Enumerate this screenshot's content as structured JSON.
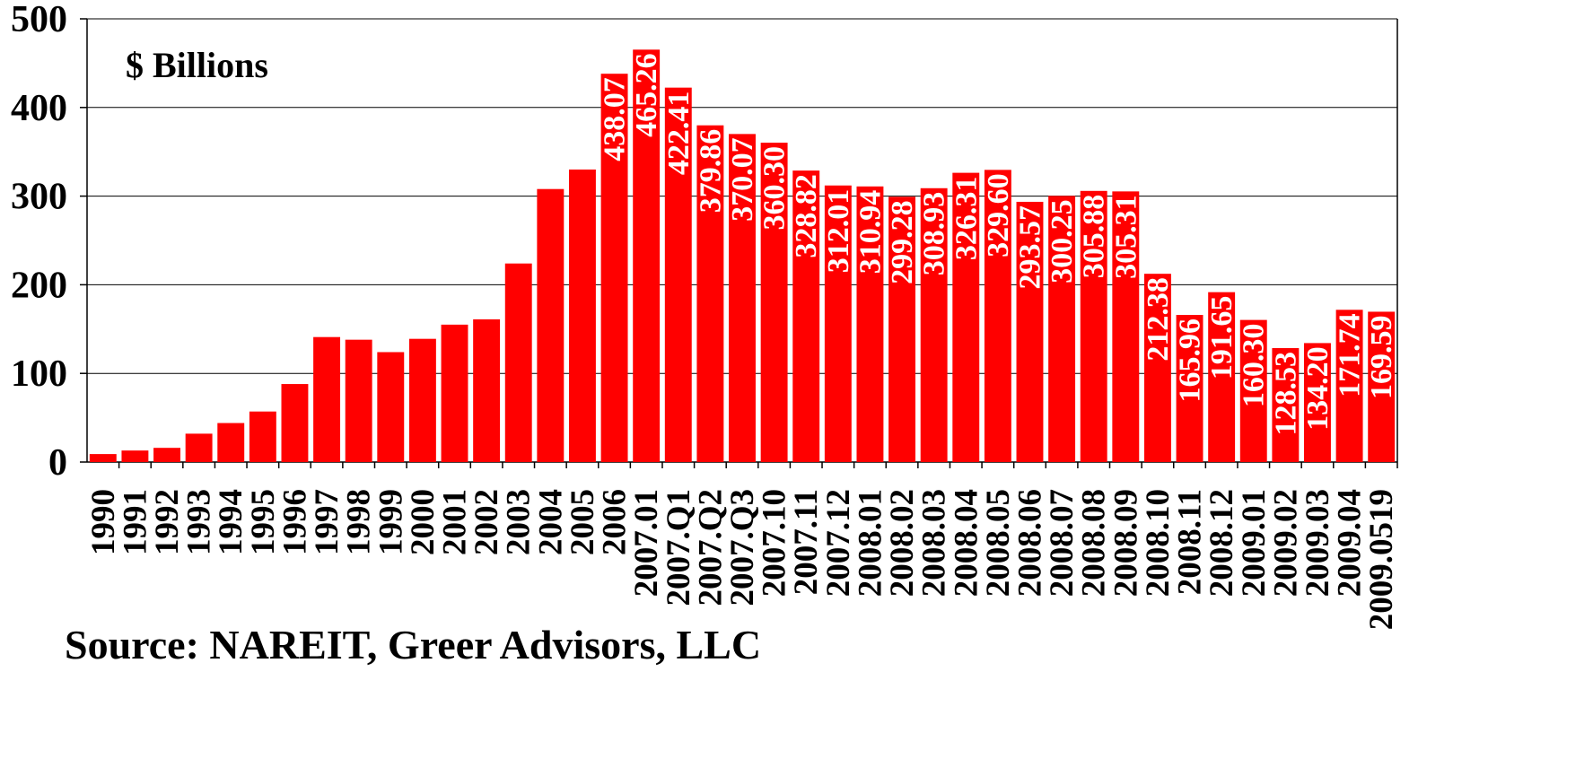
{
  "chart_data": {
    "type": "bar",
    "subtitle": "$ Billions",
    "source": "Source: NAREIT, Greer Advisors, LLC",
    "categories": [
      "1990",
      "1991",
      "1992",
      "1993",
      "1994",
      "1995",
      "1996",
      "1997",
      "1998",
      "1999",
      "2000",
      "2001",
      "2002",
      "2003",
      "2004",
      "2005",
      "2006",
      "2007.01",
      "2007.Q1",
      "2007.Q2",
      "2007.Q3",
      "2007.10",
      "2007.11",
      "2007.12",
      "2008.01",
      "2008.02",
      "2008.03",
      "2008.04",
      "2008.05",
      "2008.06",
      "2008.07",
      "2008.08",
      "2008.09",
      "2008.10",
      "2008.11",
      "2008.12",
      "2009.01",
      "2009.02",
      "2009.03",
      "2009.04",
      "2009.0519"
    ],
    "values": [
      9,
      13,
      16,
      32,
      44,
      57,
      88,
      141,
      138,
      124,
      139,
      155,
      161,
      224,
      308,
      330,
      438.07,
      465.26,
      422.41,
      379.86,
      370.07,
      360.3,
      328.82,
      312.01,
      310.94,
      299.28,
      308.93,
      326.31,
      329.6,
      293.57,
      300.25,
      305.88,
      305.31,
      212.38,
      165.96,
      191.65,
      160.3,
      128.53,
      134.2,
      171.74,
      169.59
    ],
    "value_labels": [
      null,
      null,
      null,
      null,
      null,
      null,
      null,
      null,
      null,
      null,
      null,
      null,
      null,
      null,
      null,
      null,
      "438.07",
      "465.26",
      "422.41",
      "379.86",
      "370.07",
      "360.30",
      "328.82",
      "312.01",
      "310.94",
      "299.28",
      "308.93",
      "326.31",
      "329.60",
      "293.57",
      "300.25",
      "305.88",
      "305.31",
      "212.38",
      "165.96",
      "191.65",
      "160.30",
      "128.53",
      "134.20",
      "171.74",
      "169.59"
    ],
    "color": "#ff0000",
    "label_color": "#ffffff",
    "ylim": [
      0,
      500
    ],
    "yticks": [
      0,
      100,
      200,
      300,
      400,
      500
    ],
    "grid": true
  }
}
